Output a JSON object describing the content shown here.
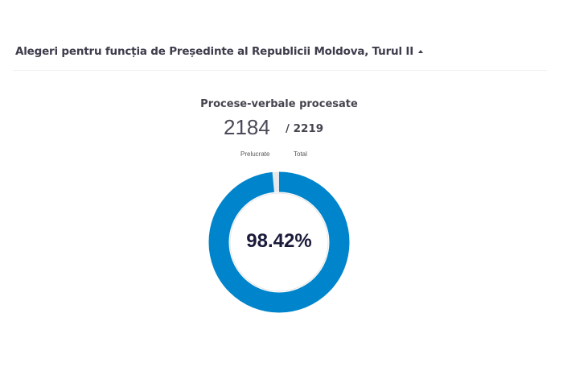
{
  "header": {
    "title": "Alegeri pentru funcția de Președinte al Republicii Moldova, Turul II",
    "toggle_icon": "caret-up-icon"
  },
  "summary": {
    "subtitle": "Procese-verbale procesate",
    "processed": "2184",
    "total": "/ 2219",
    "processed_label": "Prelucrate",
    "total_label": "Total",
    "percent_text": "98.42%",
    "percent_value": 98.42
  },
  "colors": {
    "progress": "#0085cc",
    "remainder": "#e6e8ec"
  }
}
